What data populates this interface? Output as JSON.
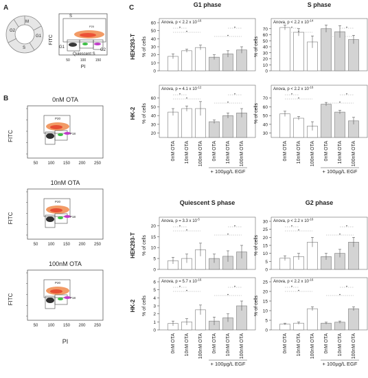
{
  "panels": {
    "a": "A",
    "b": "B",
    "c": "C"
  },
  "panel_a": {
    "ring_labels": [
      "M",
      "G1",
      "S",
      "G2"
    ],
    "gates": {
      "s": "S",
      "g1": "G1",
      "g2": "G2",
      "quiescent": "Quiescent S",
      "p20": "P20"
    },
    "ylabel": "FITC",
    "xlabel": "PI",
    "xticks": [
      "50",
      "100",
      "150"
    ]
  },
  "panel_b": {
    "ylabel": "FITC",
    "xlabel": "PI",
    "xticks": [
      "50",
      "100",
      "150",
      "200",
      "250"
    ],
    "plots": [
      {
        "title": "0nM OTA",
        "gate": "P20",
        "gate2": "P18"
      },
      {
        "title": "10nM OTA",
        "gate": "P20",
        "gate2": "P18"
      },
      {
        "title": "100nM OTA",
        "gate": "P20",
        "gate2": "P18"
      }
    ]
  },
  "row_labels": [
    "HEK293-T",
    "HK-2"
  ],
  "col_titles": [
    "G1 phase",
    "S phase",
    "Quiescent S phase",
    "G2 phase"
  ],
  "ylabel": "% of cells",
  "categories": [
    "0nM OTA",
    "10nM OTA",
    "100nM OTA",
    "0nM OTA",
    "10nM OTA",
    "100nM OTA"
  ],
  "egf_label": "+ 100µg/L EGF",
  "colors": {
    "control": "#ffffff",
    "egf": "#d3d3d3",
    "edge": "#777777"
  },
  "chart_data": [
    {
      "type": "bar",
      "title": "G1 phase",
      "row": "HEK293-T",
      "ylabel": "% of cells",
      "anova": "Anova, p < 2.2 x 10",
      "anova_exp": "-16",
      "yticks": [
        0,
        10,
        20,
        30,
        40,
        50,
        60
      ],
      "ylim": [
        0,
        60
      ],
      "values": [
        18,
        25,
        29,
        17,
        21,
        26
      ],
      "errors": [
        3,
        2,
        3,
        3,
        4,
        4
      ]
    },
    {
      "type": "bar",
      "title": "S phase",
      "row": "HEK293-T",
      "ylabel": "% of cells",
      "anova": "Anova, p < 2.2 x 10",
      "anova_exp": "-14",
      "yticks": [
        0,
        10,
        20,
        30,
        40,
        50,
        60,
        70
      ],
      "ylim": [
        0,
        80
      ],
      "values": [
        72,
        64,
        48,
        70,
        65,
        52
      ],
      "errors": [
        4,
        6,
        10,
        6,
        10,
        7
      ]
    },
    {
      "type": "bar",
      "title": "G1 phase",
      "row": "HK-2",
      "ylabel": "% of cells",
      "anova": "Anova, p = 4.1 x 10",
      "anova_exp": "-12",
      "yticks": [
        20,
        30,
        40,
        50,
        60
      ],
      "ylim": [
        15,
        70
      ],
      "values": [
        44,
        48,
        48,
        33,
        40,
        43
      ],
      "errors": [
        4,
        3,
        8,
        2,
        3,
        5
      ]
    },
    {
      "type": "bar",
      "title": "S phase",
      "row": "HK-2",
      "ylabel": "% of cells",
      "anova": "Anova, p < 2.2 x 10",
      "anova_exp": "-16",
      "yticks": [
        30,
        40,
        50,
        60,
        70
      ],
      "ylim": [
        25,
        80
      ],
      "values": [
        52,
        47,
        38,
        63,
        54,
        44
      ],
      "errors": [
        3,
        2,
        5,
        2,
        2,
        4
      ]
    },
    {
      "type": "bar",
      "title": "Quiescent S phase",
      "row": "HEK293-T",
      "ylabel": "% of cells",
      "anova": "Anova, p = 3.3 x 10",
      "anova_exp": "-5",
      "yticks": [
        0,
        5,
        10,
        15,
        20
      ],
      "ylim": [
        0,
        22
      ],
      "values": [
        4,
        5,
        9,
        5,
        6,
        8
      ],
      "errors": [
        1.5,
        2,
        3,
        2,
        2.5,
        3
      ]
    },
    {
      "type": "bar",
      "title": "G2 phase",
      "row": "HEK293-T",
      "ylabel": "% of cells",
      "anova": "Anova, p < 2.2 x 10",
      "anova_exp": "-16",
      "yticks": [
        0,
        5,
        10,
        15,
        20,
        25,
        30
      ],
      "ylim": [
        0,
        30
      ],
      "values": [
        7,
        8,
        17,
        8,
        10,
        17
      ],
      "errors": [
        1.5,
        2,
        3,
        2,
        2.5,
        3
      ]
    },
    {
      "type": "bar",
      "title": "Quiescent S phase",
      "row": "HK-2",
      "ylabel": "% of cells",
      "anova": "Anova, p = 5.7 x 10",
      "anova_exp": "-16",
      "yticks": [
        0,
        1,
        2,
        3,
        4,
        5,
        6
      ],
      "ylim": [
        0,
        6
      ],
      "values": [
        0.8,
        1.0,
        2.5,
        1.1,
        1.5,
        3.0
      ],
      "errors": [
        0.3,
        0.4,
        0.6,
        0.5,
        0.5,
        0.6
      ]
    },
    {
      "type": "bar",
      "title": "G2 phase",
      "row": "HK-2",
      "ylabel": "% of cells",
      "anova": "Anova, p < 2.2 x 10",
      "anova_exp": "-16",
      "yticks": [
        0,
        5,
        10,
        15,
        20,
        25
      ],
      "ylim": [
        0,
        25
      ],
      "values": [
        3,
        3.5,
        11,
        3.5,
        4,
        11
      ],
      "errors": [
        0.5,
        0.6,
        1,
        0.5,
        0.6,
        1
      ]
    }
  ]
}
